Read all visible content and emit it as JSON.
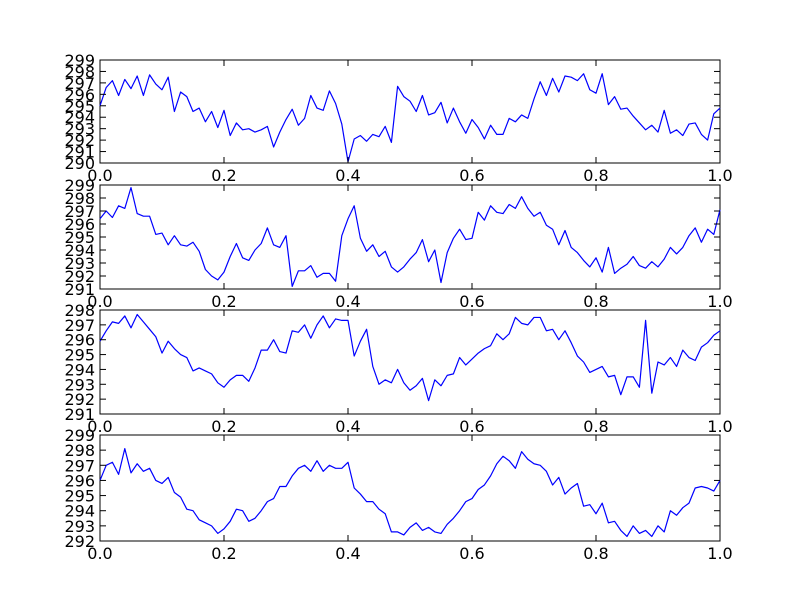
{
  "chart_data": [
    {
      "type": "line",
      "xlim": [
        0,
        1
      ],
      "ylim": [
        290,
        299
      ],
      "grid": false,
      "xticks": [
        "0.0",
        "0.2",
        "0.4",
        "0.6",
        "0.8",
        "1.0"
      ],
      "yticks": [
        "290",
        "291",
        "292",
        "293",
        "294",
        "295",
        "296",
        "297",
        "298",
        "299"
      ],
      "series": [
        {
          "color": "#0000ff",
          "x": [
            0.0,
            0.01,
            0.02,
            0.03,
            0.04,
            0.05,
            0.06,
            0.07,
            0.08,
            0.09,
            0.1,
            0.11,
            0.12,
            0.13,
            0.14,
            0.15,
            0.16,
            0.17,
            0.18,
            0.19,
            0.2,
            0.21,
            0.22,
            0.23,
            0.24,
            0.25,
            0.26,
            0.27,
            0.28,
            0.29,
            0.3,
            0.31,
            0.32,
            0.33,
            0.34,
            0.35,
            0.36,
            0.37,
            0.38,
            0.39,
            0.4,
            0.41,
            0.42,
            0.43,
            0.44,
            0.45,
            0.46,
            0.47,
            0.48,
            0.49,
            0.5,
            0.51,
            0.52,
            0.53,
            0.54,
            0.55,
            0.56,
            0.57,
            0.58,
            0.59,
            0.6,
            0.61,
            0.62,
            0.63,
            0.64,
            0.65,
            0.66,
            0.67,
            0.68,
            0.69,
            0.7,
            0.71,
            0.72,
            0.73,
            0.74,
            0.75,
            0.76,
            0.77,
            0.78,
            0.79,
            0.8,
            0.81,
            0.82,
            0.83,
            0.84,
            0.85,
            0.86,
            0.87,
            0.88,
            0.89,
            0.9,
            0.91,
            0.92,
            0.93,
            0.94,
            0.95,
            0.96,
            0.97,
            0.98,
            0.99,
            1.0
          ],
          "y": [
            295.0,
            296.6,
            297.2,
            295.9,
            297.3,
            296.5,
            297.6,
            295.9,
            297.7,
            296.9,
            296.4,
            297.5,
            294.5,
            296.2,
            295.8,
            294.5,
            294.8,
            293.6,
            294.5,
            293.1,
            294.6,
            292.4,
            293.5,
            292.9,
            293.0,
            292.7,
            292.9,
            293.2,
            291.4,
            292.7,
            293.8,
            294.7,
            293.3,
            293.9,
            295.9,
            294.8,
            294.6,
            296.3,
            295.2,
            293.4,
            290.1,
            292.1,
            292.4,
            291.9,
            292.5,
            292.3,
            293.2,
            291.8,
            296.7,
            295.8,
            295.4,
            294.5,
            295.9,
            294.2,
            294.4,
            295.3,
            293.5,
            294.8,
            293.6,
            292.6,
            293.8,
            293.1,
            292.1,
            293.3,
            292.5,
            292.5,
            293.9,
            293.6,
            294.2,
            293.9,
            295.6,
            297.1,
            295.9,
            297.4,
            296.2,
            297.6,
            297.5,
            297.2,
            297.8,
            296.4,
            296.1,
            297.8,
            295.1,
            295.8,
            294.7,
            294.8,
            294.1,
            293.5,
            292.9,
            293.3,
            292.7,
            294.6,
            292.6,
            292.9,
            292.4,
            293.4,
            293.5,
            292.5,
            292.0,
            294.3,
            294.8
          ]
        }
      ]
    },
    {
      "type": "line",
      "xlim": [
        0,
        1
      ],
      "ylim": [
        291,
        299
      ],
      "grid": false,
      "xticks": [
        "0.0",
        "0.2",
        "0.4",
        "0.6",
        "0.8",
        "1.0"
      ],
      "yticks": [
        "291",
        "292",
        "293",
        "294",
        "295",
        "296",
        "297",
        "298",
        "299"
      ],
      "series": [
        {
          "color": "#0000ff",
          "x": [
            0.0,
            0.01,
            0.02,
            0.03,
            0.04,
            0.05,
            0.06,
            0.07,
            0.08,
            0.09,
            0.1,
            0.11,
            0.12,
            0.13,
            0.14,
            0.15,
            0.16,
            0.17,
            0.18,
            0.19,
            0.2,
            0.21,
            0.22,
            0.23,
            0.24,
            0.25,
            0.26,
            0.27,
            0.28,
            0.29,
            0.3,
            0.31,
            0.32,
            0.33,
            0.34,
            0.35,
            0.36,
            0.37,
            0.38,
            0.39,
            0.4,
            0.41,
            0.42,
            0.43,
            0.44,
            0.45,
            0.46,
            0.47,
            0.48,
            0.49,
            0.5,
            0.51,
            0.52,
            0.53,
            0.54,
            0.55,
            0.56,
            0.57,
            0.58,
            0.59,
            0.6,
            0.61,
            0.62,
            0.63,
            0.64,
            0.65,
            0.66,
            0.67,
            0.68,
            0.69,
            0.7,
            0.71,
            0.72,
            0.73,
            0.74,
            0.75,
            0.76,
            0.77,
            0.78,
            0.79,
            0.8,
            0.81,
            0.82,
            0.83,
            0.84,
            0.85,
            0.86,
            0.87,
            0.88,
            0.89,
            0.9,
            0.91,
            0.92,
            0.93,
            0.94,
            0.95,
            0.96,
            0.97,
            0.98,
            0.99,
            1.0
          ],
          "y": [
            296.4,
            297.0,
            296.5,
            297.4,
            297.2,
            298.8,
            296.8,
            296.6,
            296.6,
            295.2,
            295.3,
            294.4,
            295.1,
            294.4,
            294.3,
            294.6,
            293.9,
            292.5,
            292.0,
            291.7,
            292.3,
            293.5,
            294.5,
            293.4,
            293.2,
            294.0,
            294.5,
            295.7,
            294.4,
            294.2,
            295.1,
            291.2,
            292.4,
            292.4,
            292.8,
            291.9,
            292.2,
            292.2,
            291.6,
            295.1,
            296.4,
            297.4,
            294.9,
            293.9,
            294.4,
            293.5,
            293.9,
            292.7,
            292.3,
            292.7,
            293.3,
            293.8,
            294.8,
            293.1,
            294.0,
            291.5,
            293.8,
            294.9,
            295.6,
            294.8,
            294.9,
            296.9,
            296.3,
            297.4,
            296.9,
            296.8,
            297.5,
            297.2,
            298.1,
            297.2,
            296.6,
            296.9,
            295.9,
            295.6,
            294.4,
            295.5,
            294.2,
            293.8,
            293.2,
            292.7,
            293.4,
            292.3,
            294.2,
            292.2,
            292.6,
            292.9,
            293.5,
            292.8,
            292.6,
            293.1,
            292.7,
            293.3,
            294.2,
            293.7,
            294.2,
            295.1,
            295.7,
            294.6,
            295.6,
            295.2,
            297.1
          ]
        }
      ]
    },
    {
      "type": "line",
      "xlim": [
        0,
        1
      ],
      "ylim": [
        291,
        298
      ],
      "grid": false,
      "xticks": [
        "0.0",
        "0.2",
        "0.4",
        "0.6",
        "0.8",
        "1.0"
      ],
      "yticks": [
        "291",
        "292",
        "293",
        "294",
        "295",
        "296",
        "297",
        "298"
      ],
      "series": [
        {
          "color": "#0000ff",
          "x": [
            0.0,
            0.01,
            0.02,
            0.03,
            0.04,
            0.05,
            0.06,
            0.07,
            0.08,
            0.09,
            0.1,
            0.11,
            0.12,
            0.13,
            0.14,
            0.15,
            0.16,
            0.17,
            0.18,
            0.19,
            0.2,
            0.21,
            0.22,
            0.23,
            0.24,
            0.25,
            0.26,
            0.27,
            0.28,
            0.29,
            0.3,
            0.31,
            0.32,
            0.33,
            0.34,
            0.35,
            0.36,
            0.37,
            0.38,
            0.39,
            0.4,
            0.41,
            0.42,
            0.43,
            0.44,
            0.45,
            0.46,
            0.47,
            0.48,
            0.49,
            0.5,
            0.51,
            0.52,
            0.53,
            0.54,
            0.55,
            0.56,
            0.57,
            0.58,
            0.59,
            0.6,
            0.61,
            0.62,
            0.63,
            0.64,
            0.65,
            0.66,
            0.67,
            0.68,
            0.69,
            0.7,
            0.71,
            0.72,
            0.73,
            0.74,
            0.75,
            0.76,
            0.77,
            0.78,
            0.79,
            0.8,
            0.81,
            0.82,
            0.83,
            0.84,
            0.85,
            0.86,
            0.87,
            0.88,
            0.89,
            0.9,
            0.91,
            0.92,
            0.93,
            0.94,
            0.95,
            0.96,
            0.97,
            0.98,
            0.99,
            1.0
          ],
          "y": [
            295.9,
            296.6,
            297.2,
            297.1,
            297.6,
            296.8,
            297.7,
            297.2,
            296.7,
            296.2,
            295.1,
            295.9,
            295.4,
            295.0,
            294.8,
            293.9,
            294.1,
            293.9,
            293.7,
            293.1,
            292.8,
            293.3,
            293.6,
            293.6,
            293.2,
            294.1,
            295.3,
            295.3,
            296.0,
            295.2,
            295.1,
            296.6,
            296.5,
            297.0,
            296.1,
            297.0,
            297.6,
            296.8,
            297.4,
            297.3,
            297.3,
            294.9,
            295.9,
            296.7,
            294.2,
            293.0,
            293.3,
            293.1,
            294.0,
            293.1,
            292.6,
            292.9,
            293.4,
            291.9,
            293.3,
            292.9,
            293.6,
            293.7,
            294.8,
            294.3,
            294.7,
            295.1,
            295.4,
            295.6,
            296.4,
            296.0,
            296.4,
            297.5,
            297.1,
            297.0,
            297.5,
            297.5,
            296.6,
            296.7,
            296.0,
            296.6,
            295.8,
            294.9,
            294.5,
            293.8,
            294.0,
            294.2,
            293.5,
            293.6,
            292.3,
            293.5,
            293.5,
            292.8,
            297.3,
            292.4,
            294.5,
            294.3,
            294.8,
            294.2,
            295.3,
            294.8,
            294.6,
            295.5,
            295.8,
            296.3,
            296.6
          ]
        }
      ]
    },
    {
      "type": "line",
      "xlim": [
        0,
        1
      ],
      "ylim": [
        292,
        299
      ],
      "grid": false,
      "xticks": [
        "0.0",
        "0.2",
        "0.4",
        "0.6",
        "0.8",
        "1.0"
      ],
      "yticks": [
        "292",
        "293",
        "294",
        "295",
        "296",
        "297",
        "298",
        "299"
      ],
      "series": [
        {
          "color": "#0000ff",
          "x": [
            0.0,
            0.01,
            0.02,
            0.03,
            0.04,
            0.05,
            0.06,
            0.07,
            0.08,
            0.09,
            0.1,
            0.11,
            0.12,
            0.13,
            0.14,
            0.15,
            0.16,
            0.17,
            0.18,
            0.19,
            0.2,
            0.21,
            0.22,
            0.23,
            0.24,
            0.25,
            0.26,
            0.27,
            0.28,
            0.29,
            0.3,
            0.31,
            0.32,
            0.33,
            0.34,
            0.35,
            0.36,
            0.37,
            0.38,
            0.39,
            0.4,
            0.41,
            0.42,
            0.43,
            0.44,
            0.45,
            0.46,
            0.47,
            0.48,
            0.49,
            0.5,
            0.51,
            0.52,
            0.53,
            0.54,
            0.55,
            0.56,
            0.57,
            0.58,
            0.59,
            0.6,
            0.61,
            0.62,
            0.63,
            0.64,
            0.65,
            0.66,
            0.67,
            0.68,
            0.69,
            0.7,
            0.71,
            0.72,
            0.73,
            0.74,
            0.75,
            0.76,
            0.77,
            0.78,
            0.79,
            0.8,
            0.81,
            0.82,
            0.83,
            0.84,
            0.85,
            0.86,
            0.87,
            0.88,
            0.89,
            0.9,
            0.91,
            0.92,
            0.93,
            0.94,
            0.95,
            0.96,
            0.97,
            0.98,
            0.99,
            1.0
          ],
          "y": [
            296.0,
            297.0,
            297.2,
            296.4,
            298.1,
            296.5,
            297.1,
            296.6,
            296.8,
            296.0,
            295.8,
            296.2,
            295.2,
            294.9,
            294.1,
            294.0,
            293.4,
            293.2,
            293.0,
            292.5,
            292.8,
            293.3,
            294.1,
            294.0,
            293.3,
            293.5,
            294.0,
            294.6,
            294.8,
            295.6,
            295.6,
            296.3,
            296.8,
            297.0,
            296.6,
            297.3,
            296.6,
            297.0,
            296.8,
            296.8,
            297.2,
            295.5,
            295.1,
            294.6,
            294.6,
            294.1,
            293.8,
            292.6,
            292.6,
            292.4,
            292.9,
            293.2,
            292.7,
            292.9,
            292.6,
            292.5,
            293.1,
            293.5,
            294.0,
            294.6,
            294.8,
            295.4,
            295.7,
            296.3,
            297.1,
            297.6,
            297.3,
            296.8,
            297.9,
            297.4,
            297.1,
            297.0,
            296.6,
            295.7,
            296.2,
            295.1,
            295.5,
            295.8,
            294.3,
            294.4,
            293.8,
            294.5,
            293.2,
            293.3,
            292.7,
            292.3,
            293.0,
            292.5,
            292.7,
            292.3,
            293.0,
            292.6,
            294.0,
            293.7,
            294.2,
            294.5,
            295.5,
            295.6,
            295.5,
            295.3,
            296.0
          ]
        }
      ]
    }
  ]
}
